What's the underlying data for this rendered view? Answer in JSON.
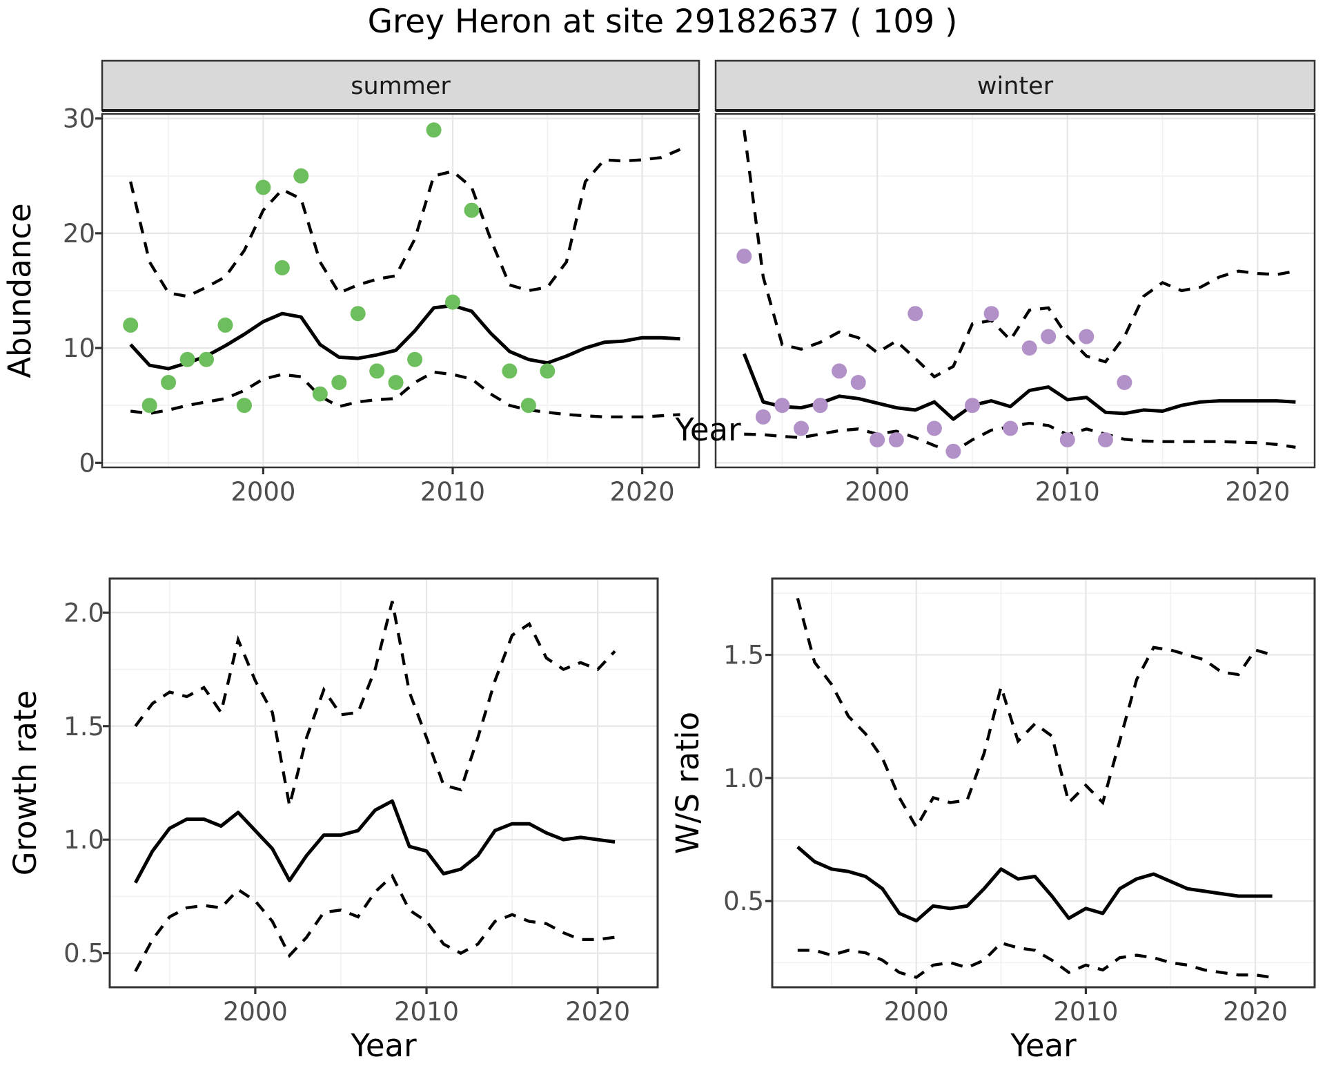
{
  "title": "Grey Heron at site 29182637 ( 109 )",
  "colors": {
    "summer_points": "#6DBE5C",
    "winter_points": "#B291C8",
    "trend_line": "#000000",
    "ci_line": "#000000",
    "grid_major": "#E6E6E6",
    "grid_minor": "#F1F1F1",
    "strip_bg": "#D9D9D9",
    "strip_text": "#1A1A1A",
    "axis_text": "#4D4D4D",
    "axis_title": "#000000",
    "panel_border": "#333333",
    "background": "#FFFFFF"
  },
  "chart_data": [
    {
      "name": "abundance-summer",
      "type": "line",
      "facet_label": "summer",
      "xlabel": "Year",
      "ylabel": "Abundance",
      "xlim": [
        1991.5,
        2023
      ],
      "ylim": [
        -0.4,
        30.4
      ],
      "x_ticks": [
        2000,
        2010,
        2020
      ],
      "x_tick_labels": [
        "2000",
        "2010",
        "2020"
      ],
      "x_minor": [
        1995,
        2005,
        2015
      ],
      "y_ticks": [
        0,
        10,
        20,
        30
      ],
      "y_tick_labels": [
        "0",
        "10",
        "20",
        "30"
      ],
      "y_minor": [
        5,
        15,
        25
      ],
      "grid": true,
      "legend": "none",
      "years": [
        1993,
        1994,
        1995,
        1996,
        1997,
        1998,
        1999,
        2000,
        2001,
        2002,
        2003,
        2004,
        2005,
        2006,
        2007,
        2008,
        2009,
        2010,
        2011,
        2012,
        2013,
        2014,
        2015,
        2016,
        2017,
        2018,
        2019,
        2020,
        2021,
        2022
      ],
      "trend": [
        10.3,
        8.5,
        8.2,
        8.7,
        9.3,
        10.2,
        11.2,
        12.3,
        13.0,
        12.7,
        10.3,
        9.2,
        9.1,
        9.4,
        9.8,
        11.5,
        13.5,
        13.7,
        13.2,
        11.3,
        9.7,
        9.0,
        8.7,
        9.3,
        10.0,
        10.5,
        10.6,
        10.9,
        10.9,
        10.8
      ],
      "upper": [
        24.5,
        17.5,
        14.8,
        14.5,
        15.3,
        16.2,
        18.5,
        22.0,
        23.8,
        23.0,
        17.5,
        14.8,
        15.5,
        16.0,
        16.3,
        19.5,
        25.0,
        25.4,
        24.0,
        19.5,
        15.5,
        15.0,
        15.3,
        17.5,
        24.5,
        26.4,
        26.3,
        26.4,
        26.6,
        27.3
      ],
      "lower": [
        4.5,
        4.3,
        4.6,
        5.0,
        5.3,
        5.6,
        6.3,
        7.3,
        7.7,
        7.5,
        5.8,
        4.9,
        5.3,
        5.5,
        5.6,
        7.0,
        7.9,
        7.7,
        7.3,
        6.0,
        5.0,
        4.6,
        4.4,
        4.2,
        4.1,
        4.0,
        4.0,
        4.0,
        4.1,
        4.2
      ],
      "points": {
        "years": [
          1993,
          1994,
          1995,
          1996,
          1997,
          1998,
          1999,
          2000,
          2001,
          2002,
          2003,
          2004,
          2005,
          2006,
          2007,
          2008,
          2009,
          2010,
          2011,
          2013,
          2014,
          2015
        ],
        "values": [
          12,
          5,
          7,
          9,
          9,
          12,
          5,
          24,
          17,
          25,
          6,
          7,
          13,
          8,
          7,
          9,
          29,
          14,
          22,
          8,
          5,
          8
        ],
        "color_key": "summer_points"
      }
    },
    {
      "name": "abundance-winter",
      "type": "line",
      "facet_label": "winter",
      "xlabel": "Year",
      "ylabel": "Abundance",
      "xlim": [
        1991.5,
        2023
      ],
      "ylim": [
        -0.4,
        30.4
      ],
      "x_ticks": [
        2000,
        2010,
        2020
      ],
      "x_tick_labels": [
        "2000",
        "2010",
        "2020"
      ],
      "x_minor": [
        1995,
        2005,
        2015
      ],
      "y_ticks": [
        0,
        10,
        20,
        30
      ],
      "y_tick_labels": [
        "0",
        "10",
        "20",
        "30"
      ],
      "y_minor": [
        5,
        15,
        25
      ],
      "grid": true,
      "legend": "none",
      "years": [
        1993,
        1994,
        1995,
        1996,
        1997,
        1998,
        1999,
        2000,
        2001,
        2002,
        2003,
        2004,
        2005,
        2006,
        2007,
        2008,
        2009,
        2010,
        2011,
        2012,
        2013,
        2014,
        2015,
        2016,
        2017,
        2018,
        2019,
        2020,
        2021,
        2022
      ],
      "trend": [
        9.5,
        5.3,
        4.9,
        4.8,
        5.2,
        5.8,
        5.6,
        5.2,
        4.8,
        4.6,
        5.3,
        3.8,
        5.0,
        5.4,
        4.9,
        6.3,
        6.6,
        5.5,
        5.7,
        4.4,
        4.3,
        4.6,
        4.5,
        5.0,
        5.3,
        5.4,
        5.4,
        5.4,
        5.4,
        5.3
      ],
      "upper": [
        29.0,
        16.2,
        10.3,
        9.9,
        10.5,
        11.4,
        10.9,
        9.6,
        10.6,
        9.1,
        7.5,
        8.4,
        12.1,
        12.4,
        10.7,
        13.3,
        13.5,
        11.0,
        9.3,
        8.8,
        11.0,
        14.5,
        15.7,
        15.0,
        15.3,
        16.2,
        16.7,
        16.5,
        16.4,
        16.7
      ],
      "lower": [
        2.5,
        2.45,
        2.3,
        2.2,
        2.5,
        2.8,
        2.95,
        2.5,
        2.75,
        2.2,
        1.5,
        0.95,
        2.0,
        2.85,
        3.15,
        3.45,
        3.25,
        2.45,
        2.95,
        2.5,
        2.05,
        1.9,
        1.85,
        1.85,
        1.85,
        1.85,
        1.8,
        1.75,
        1.6,
        1.35
      ],
      "points": {
        "years": [
          1993,
          1994,
          1995,
          1996,
          1997,
          1998,
          1999,
          2000,
          2001,
          2002,
          2003,
          2004,
          2005,
          2006,
          2007,
          2008,
          2009,
          2010,
          2011,
          2012,
          2013
        ],
        "values": [
          18,
          4,
          5,
          3,
          5,
          8,
          7,
          2,
          2,
          13,
          3,
          1,
          5,
          13,
          3,
          10,
          11,
          2,
          11,
          2,
          7
        ],
        "color_key": "winter_points"
      }
    },
    {
      "name": "growth-rate",
      "type": "line",
      "facet_label": null,
      "xlabel": "Year",
      "ylabel": "Growth rate",
      "xlim": [
        1991.5,
        2023.5
      ],
      "ylim": [
        0.35,
        2.15
      ],
      "x_ticks": [
        2000,
        2010,
        2020
      ],
      "x_tick_labels": [
        "2000",
        "2010",
        "2020"
      ],
      "x_minor": [
        1995,
        2005,
        2015
      ],
      "y_ticks": [
        0.5,
        1.0,
        1.5,
        2.0
      ],
      "y_tick_labels": [
        "0.5",
        "1.0",
        "1.5",
        "2.0"
      ],
      "y_minor": [
        0.75,
        1.25,
        1.75
      ],
      "grid": true,
      "legend": "none",
      "years": [
        1993,
        1994,
        1995,
        1996,
        1997,
        1998,
        1999,
        2000,
        2001,
        2002,
        2003,
        2004,
        2005,
        2006,
        2007,
        2008,
        2009,
        2010,
        2011,
        2012,
        2013,
        2014,
        2015,
        2016,
        2017,
        2018,
        2019,
        2020,
        2021
      ],
      "trend": [
        0.81,
        0.95,
        1.05,
        1.09,
        1.09,
        1.06,
        1.12,
        1.04,
        0.96,
        0.82,
        0.93,
        1.02,
        1.02,
        1.04,
        1.13,
        1.17,
        0.97,
        0.95,
        0.85,
        0.87,
        0.93,
        1.04,
        1.07,
        1.07,
        1.03,
        1.0,
        1.01,
        1.0,
        0.99
      ],
      "upper": [
        1.5,
        1.6,
        1.65,
        1.63,
        1.67,
        1.56,
        1.88,
        1.7,
        1.56,
        1.15,
        1.45,
        1.66,
        1.55,
        1.56,
        1.75,
        2.05,
        1.65,
        1.45,
        1.24,
        1.22,
        1.45,
        1.7,
        1.9,
        1.95,
        1.8,
        1.75,
        1.78,
        1.75,
        1.83
      ],
      "lower": [
        0.42,
        0.56,
        0.66,
        0.7,
        0.71,
        0.7,
        0.78,
        0.73,
        0.64,
        0.49,
        0.57,
        0.68,
        0.69,
        0.66,
        0.77,
        0.84,
        0.69,
        0.64,
        0.54,
        0.5,
        0.54,
        0.64,
        0.67,
        0.64,
        0.63,
        0.59,
        0.56,
        0.56,
        0.57
      ],
      "points": null
    },
    {
      "name": "winter-summer-ratio",
      "type": "line",
      "facet_label": null,
      "xlabel": "Year",
      "ylabel": "W/S ratio",
      "xlim": [
        1991.5,
        2023.5
      ],
      "ylim": [
        0.15,
        1.81
      ],
      "x_ticks": [
        2000,
        2010,
        2020
      ],
      "x_tick_labels": [
        "2000",
        "2010",
        "2020"
      ],
      "x_minor": [
        1995,
        2005,
        2015
      ],
      "y_ticks": [
        0.5,
        1.0,
        1.5
      ],
      "y_tick_labels": [
        "0.5",
        "1.0",
        "1.5"
      ],
      "y_minor": [
        0.25,
        0.75,
        1.25,
        1.75
      ],
      "grid": true,
      "legend": "none",
      "years": [
        1993,
        1994,
        1995,
        1996,
        1997,
        1998,
        1999,
        2000,
        2001,
        2002,
        2003,
        2004,
        2005,
        2006,
        2007,
        2008,
        2009,
        2010,
        2011,
        2012,
        2013,
        2014,
        2015,
        2016,
        2017,
        2018,
        2019,
        2020,
        2021
      ],
      "trend": [
        0.72,
        0.66,
        0.63,
        0.62,
        0.6,
        0.55,
        0.45,
        0.42,
        0.48,
        0.47,
        0.48,
        0.55,
        0.63,
        0.59,
        0.6,
        0.52,
        0.43,
        0.47,
        0.45,
        0.55,
        0.59,
        0.61,
        0.58,
        0.55,
        0.54,
        0.53,
        0.52,
        0.52,
        0.52
      ],
      "upper": [
        1.73,
        1.47,
        1.38,
        1.25,
        1.18,
        1.08,
        0.92,
        0.8,
        0.92,
        0.9,
        0.91,
        1.1,
        1.37,
        1.15,
        1.22,
        1.17,
        0.9,
        0.97,
        0.9,
        1.15,
        1.4,
        1.53,
        1.52,
        1.5,
        1.48,
        1.43,
        1.42,
        1.52,
        1.5
      ],
      "lower": [
        0.3,
        0.3,
        0.28,
        0.3,
        0.29,
        0.26,
        0.21,
        0.19,
        0.24,
        0.25,
        0.23,
        0.26,
        0.33,
        0.31,
        0.3,
        0.26,
        0.21,
        0.24,
        0.22,
        0.27,
        0.28,
        0.27,
        0.25,
        0.24,
        0.22,
        0.21,
        0.2,
        0.2,
        0.19
      ],
      "points": null
    }
  ]
}
